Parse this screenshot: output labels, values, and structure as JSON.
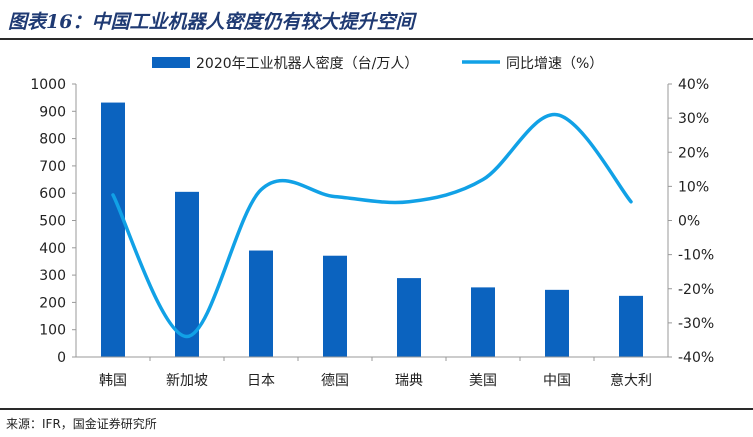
{
  "title": "图表16：中国工业机器人密度仍有较大提升空间",
  "source": "来源：IFR，国金证券研究所",
  "colors": {
    "bar": "#0b63bf",
    "line": "#11a1e6",
    "axis": "#999999",
    "title": "#1f3a73"
  },
  "chart_data": {
    "type": "bar",
    "categories": [
      "韩国",
      "新加坡",
      "日本",
      "德国",
      "瑞典",
      "美国",
      "中国",
      "意大利"
    ],
    "series": [
      {
        "name": "2020年工业机器人密度（台/万人）",
        "type": "bar",
        "axis": "left",
        "values": [
          932,
          605,
          390,
          371,
          289,
          255,
          246,
          224
        ]
      },
      {
        "name": "同比增速（%）",
        "type": "line",
        "axis": "right",
        "smooth": true,
        "values": [
          7.5,
          -34,
          9,
          7,
          5.5,
          12,
          31,
          5.5
        ]
      }
    ],
    "y_left": {
      "min": 0,
      "max": 1000,
      "step": 100,
      "ticks": [
        "0",
        "100",
        "200",
        "300",
        "400",
        "500",
        "600",
        "700",
        "800",
        "900",
        "1000"
      ]
    },
    "y_right": {
      "min": -40,
      "max": 40,
      "step": 10,
      "ticks": [
        "-40%",
        "-30%",
        "-20%",
        "-10%",
        "0%",
        "10%",
        "20%",
        "30%",
        "40%"
      ]
    },
    "grid": false,
    "legend": "top-center"
  }
}
